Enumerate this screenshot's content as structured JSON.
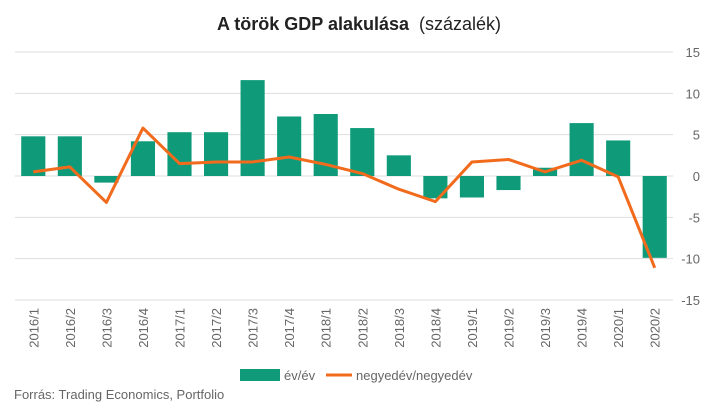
{
  "chart_data": {
    "type": "bar",
    "title_bold": "A török GDP alakulása",
    "title_normal": "(százalék)",
    "categories": [
      "2016/1",
      "2016/2",
      "2016/3",
      "2016/4",
      "2017/1",
      "2017/2",
      "2017/3",
      "2017/4",
      "2018/1",
      "2018/2",
      "2018/3",
      "2018/4",
      "2019/1",
      "2019/2",
      "2019/3",
      "2019/4",
      "2020/1",
      "2020/2"
    ],
    "series": [
      {
        "name": "év/év",
        "kind": "bar",
        "color": "#0f9b7a",
        "values": [
          4.8,
          4.8,
          -0.8,
          4.2,
          5.3,
          5.3,
          11.6,
          7.2,
          7.5,
          5.8,
          2.5,
          -2.7,
          -2.6,
          -1.7,
          1.0,
          6.4,
          4.3,
          -9.9
        ]
      },
      {
        "name": "negyedév/negyedév",
        "kind": "line",
        "color": "#f26b1d",
        "values": [
          0.5,
          1.1,
          -3.2,
          5.8,
          1.5,
          1.7,
          1.7,
          2.3,
          1.4,
          0.3,
          -1.6,
          -3.1,
          1.7,
          2.0,
          0.5,
          1.9,
          -0.1,
          -11.1
        ]
      }
    ],
    "ylim": [
      -15,
      15
    ],
    "yticks": [
      -15,
      -10,
      -5,
      0,
      5,
      10,
      15
    ],
    "grid": true,
    "legend": "bottom"
  },
  "source": "Forrás: Trading Economics, Portfolio"
}
